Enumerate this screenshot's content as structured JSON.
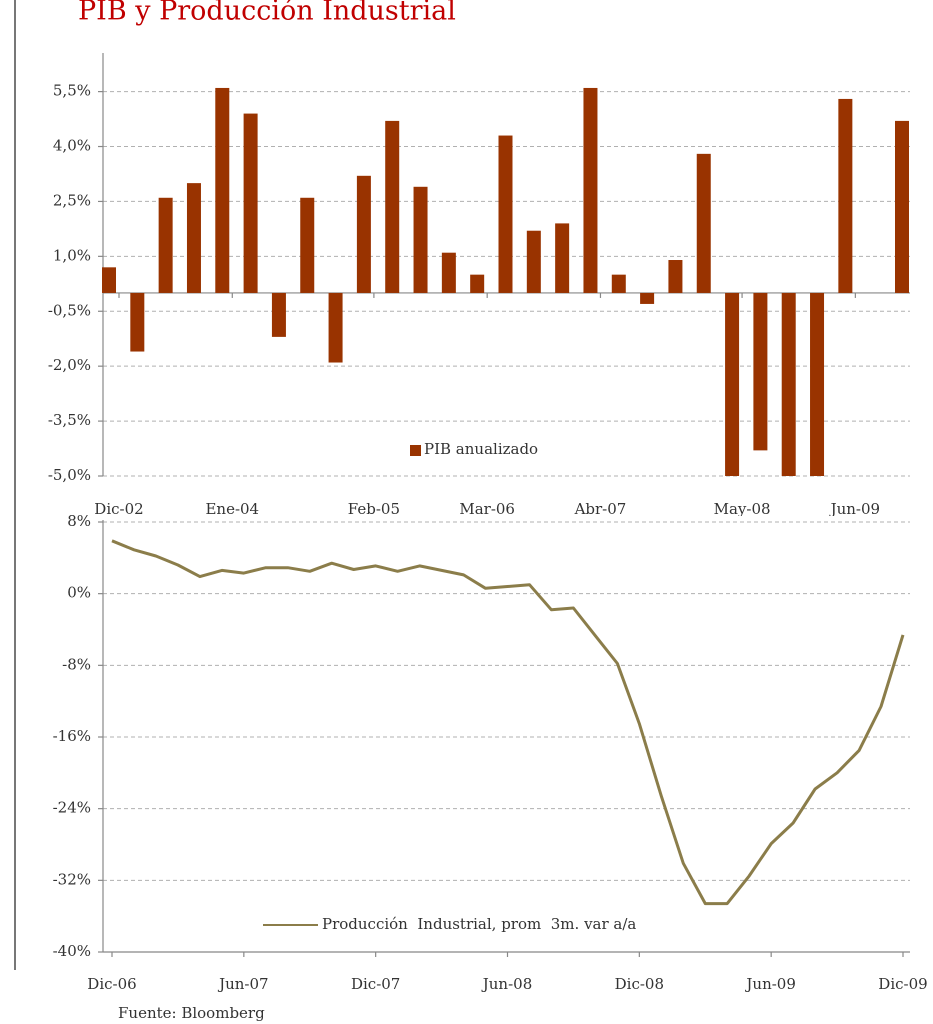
{
  "chart_data": [
    {
      "type": "bar",
      "title": "PIB y Producción Industrial",
      "categories": [
        "Dic-02",
        null,
        null,
        null,
        "Ene-04",
        null,
        null,
        null,
        null,
        "Feb-05",
        null,
        null,
        null,
        "Mar-06",
        null,
        null,
        null,
        "Abr-07",
        null,
        null,
        null,
        null,
        "May-08",
        null,
        null,
        null,
        "Jun-09",
        null,
        null
      ],
      "series": [
        {
          "name": "PIB anualizado",
          "color": "#993300",
          "values": [
            0.7,
            -1.6,
            2.6,
            3.0,
            5.6,
            4.9,
            -1.2,
            2.6,
            -1.9,
            3.2,
            4.7,
            2.9,
            1.1,
            0.5,
            4.3,
            1.7,
            1.9,
            5.6,
            0.5,
            -0.3,
            0.9,
            3.8,
            -5.0,
            -4.3,
            -5.0,
            -5.0,
            5.3,
            null,
            4.7
          ]
        }
      ],
      "ylim": [
        -5.0,
        6.5
      ],
      "yticks": [
        {
          "value": 5.5,
          "label": "5,5%"
        },
        {
          "value": 4.0,
          "label": "4,0%"
        },
        {
          "value": 2.5,
          "label": "2,5%"
        },
        {
          "value": 1.0,
          "label": "1,0%"
        },
        {
          "value": -0.5,
          "label": "-0,5%"
        },
        {
          "value": -2.0,
          "label": "-2,0%"
        },
        {
          "value": -3.5,
          "label": "-3,5%"
        },
        {
          "value": -5.0,
          "label": "-5,0%"
        }
      ],
      "grid": true
    },
    {
      "type": "line",
      "categories": [
        "Dic-06",
        null,
        null,
        null,
        null,
        null,
        "Jun-07",
        null,
        null,
        null,
        null,
        null,
        "Dic-07",
        null,
        null,
        null,
        null,
        null,
        "Jun-08",
        null,
        null,
        null,
        null,
        null,
        "Dic-08",
        null,
        null,
        null,
        null,
        null,
        "Jun-09",
        null,
        null,
        null,
        null,
        null,
        "Dic-09"
      ],
      "series": [
        {
          "name": "Producción  Industrial, prom  3m. var a/a",
          "color": "#8b7d4a",
          "values": [
            5.9,
            4.9,
            4.2,
            3.2,
            1.9,
            2.6,
            2.3,
            2.9,
            2.9,
            2.5,
            3.4,
            2.7,
            3.1,
            2.5,
            3.1,
            2.6,
            2.1,
            0.6,
            0.8,
            1.0,
            -1.8,
            -1.6,
            -4.7,
            -7.8,
            -14.5,
            -22.6,
            -30.1,
            -34.6,
            -34.6,
            -31.5,
            -27.9,
            -25.6,
            -21.8,
            -20.0,
            -17.5,
            -12.6,
            -4.6
          ]
        }
      ],
      "ylim": [
        -40,
        8
      ],
      "yticks": [
        {
          "value": 8,
          "label": "8%"
        },
        {
          "value": 0,
          "label": "0%"
        },
        {
          "value": -8,
          "label": "-8%"
        },
        {
          "value": -16,
          "label": "-16%"
        },
        {
          "value": -24,
          "label": "-24%"
        },
        {
          "value": -32,
          "label": "-32%"
        },
        {
          "value": -40,
          "label": "-40%"
        }
      ],
      "grid": true
    }
  ],
  "source": "Fuente: Bloomberg"
}
